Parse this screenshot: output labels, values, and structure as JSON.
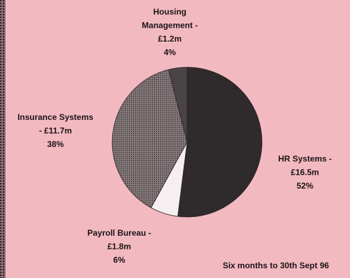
{
  "chart_data": {
    "type": "pie",
    "categories": [
      "HR Systems",
      "Payroll Bureau",
      "Insurance Systems",
      "Housing Management"
    ],
    "labels": [
      [
        "HR Systems -",
        "£16.5m"
      ],
      [
        "Payroll Bureau -",
        "£1.8m"
      ],
      [
        "Insurance Systems",
        "- £11.7m"
      ],
      [
        "Housing",
        "Management -",
        "£1.2m"
      ]
    ],
    "values": [
      52,
      6,
      38,
      4
    ],
    "value_labels": [
      "52%",
      "6%",
      "38%",
      "4%"
    ],
    "colors": [
      "#2f2a2c",
      "#f6eef0",
      "url(#dots)",
      "#4b4446"
    ],
    "start_angle": 0,
    "direction": "clockwise",
    "note": "Six months to 30th Sept 96"
  }
}
